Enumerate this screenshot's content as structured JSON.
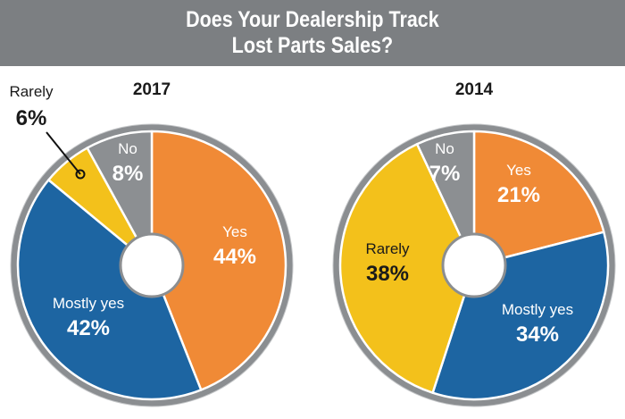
{
  "title": {
    "line1": "Does Your Dealership Track",
    "line2": "Lost Parts Sales?"
  },
  "colors": {
    "header_bg": "#7c7f82",
    "ring": "#8b8e91",
    "ring_border": "#c4c6c8",
    "yes": "#f08a36",
    "mostly_yes": "#1d65a2",
    "rarely": "#f3c11b",
    "no": "#8c8f92"
  },
  "chart_data": [
    {
      "type": "pie",
      "title": "2017",
      "slices": [
        {
          "label": "Yes",
          "value": 44,
          "value_label": "44%",
          "color": "#f08a36"
        },
        {
          "label": "Mostly yes",
          "value": 42,
          "value_label": "42%",
          "color": "#1d65a2"
        },
        {
          "label": "Rarely",
          "value": 6,
          "value_label": "6%",
          "color": "#f3c11b"
        },
        {
          "label": "No",
          "value": 8,
          "value_label": "8%",
          "color": "#8c8f92"
        }
      ]
    },
    {
      "type": "pie",
      "title": "2014",
      "slices": [
        {
          "label": "Yes",
          "value": 21,
          "value_label": "21%",
          "color": "#f08a36"
        },
        {
          "label": "Mostly yes",
          "value": 34,
          "value_label": "34%",
          "color": "#1d65a2"
        },
        {
          "label": "Rarely",
          "value": 38,
          "value_label": "38%",
          "color": "#f3c11b"
        },
        {
          "label": "No",
          "value": 7,
          "value_label": "7%",
          "color": "#8c8f92"
        }
      ]
    }
  ]
}
